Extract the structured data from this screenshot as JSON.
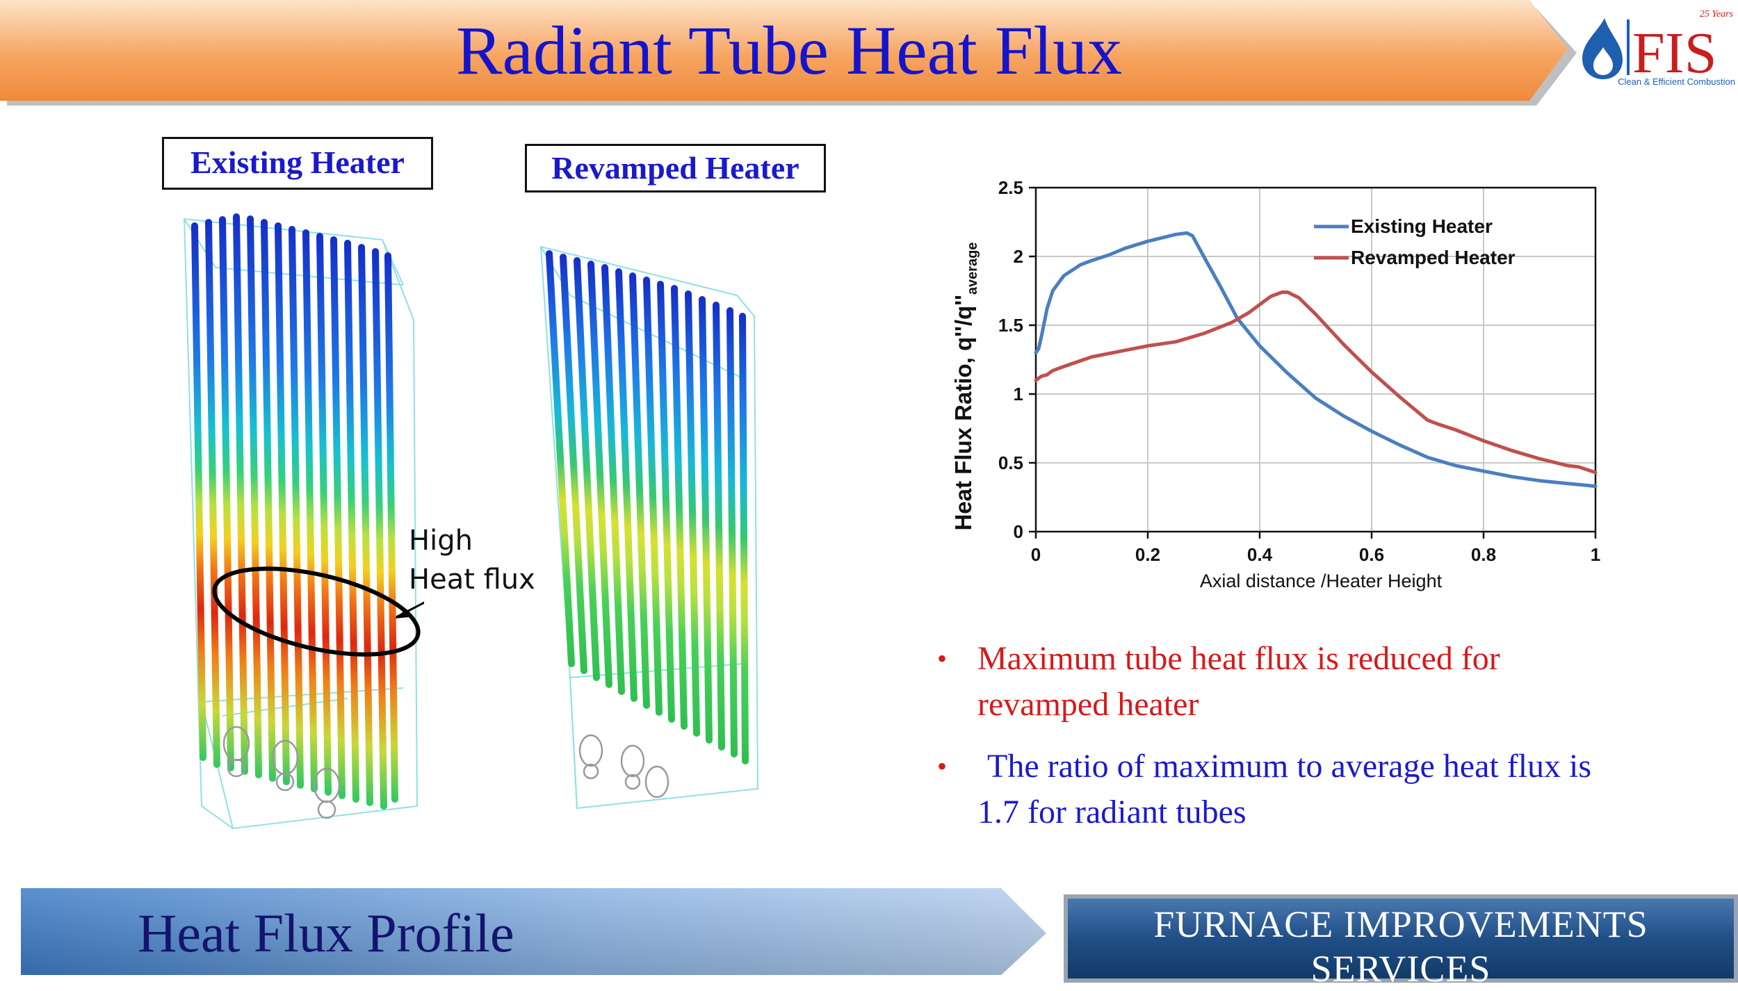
{
  "slide": {
    "title": "Radiant Tube Heat Flux",
    "logo": {
      "text": "FIS",
      "years": "25 Years",
      "tagline": "Clean & Efficient Combustion",
      "icon": "flame-drop-icon"
    },
    "heater_labels": {
      "existing": "Existing Heater",
      "revamped": "Revamped Heater"
    },
    "annotation": {
      "line1": "High",
      "line2": "Heat flux"
    },
    "bullets": [
      {
        "line1": "Maximum tube heat flux is reduced for",
        "line2": "revamped heater",
        "color": "#d61a1a"
      },
      {
        "line1": "The ratio of maximum to average heat flux is",
        "line2": "1.7 for radiant tubes",
        "color": "#1a1acc"
      }
    ],
    "footer_title": "Heat Flux Profile",
    "company_name": "FURNACE IMPROVEMENTS SERVICES",
    "colors": {
      "title_text": "#1414cc",
      "title_banner": "#f5a05a",
      "footer_banner": "#5a8fd0",
      "company_box": "#1f4f86"
    }
  },
  "chart_data": {
    "type": "line",
    "title": "",
    "xlabel": "Axial distance /Heater Height",
    "ylabel_main": "Heat Flux Ratio, q''/q''",
    "ylabel_sub": "average",
    "xlim": [
      0,
      1
    ],
    "ylim": [
      0,
      2.5
    ],
    "x_ticks": [
      "0",
      "0.2",
      "0.4",
      "0.6",
      "0.8",
      "1"
    ],
    "y_ticks": [
      "0",
      "0.5",
      "1",
      "1.5",
      "2",
      "2.5"
    ],
    "x_tick_values": [
      0,
      0.2,
      0.4,
      0.6,
      0.8,
      1
    ],
    "y_tick_values": [
      0,
      0.5,
      1,
      1.5,
      2,
      2.5
    ],
    "grid": true,
    "legend_position": "top-right",
    "series": [
      {
        "name": "Existing Heater",
        "color": "#4a7fbf",
        "x": [
          0,
          0.005,
          0.01,
          0.02,
          0.03,
          0.05,
          0.08,
          0.1,
          0.13,
          0.16,
          0.2,
          0.23,
          0.25,
          0.27,
          0.28,
          0.3,
          0.33,
          0.36,
          0.4,
          0.45,
          0.5,
          0.55,
          0.6,
          0.65,
          0.7,
          0.75,
          0.8,
          0.85,
          0.9,
          0.95,
          1.0
        ],
        "y": [
          1.3,
          1.33,
          1.42,
          1.62,
          1.75,
          1.86,
          1.94,
          1.97,
          2.01,
          2.06,
          2.11,
          2.14,
          2.16,
          2.17,
          2.15,
          2.0,
          1.78,
          1.55,
          1.35,
          1.15,
          0.97,
          0.84,
          0.73,
          0.63,
          0.54,
          0.48,
          0.44,
          0.4,
          0.37,
          0.35,
          0.33
        ]
      },
      {
        "name": "Revamped Heater",
        "color": "#c0504d",
        "x": [
          0,
          0.01,
          0.02,
          0.03,
          0.05,
          0.1,
          0.15,
          0.2,
          0.25,
          0.3,
          0.35,
          0.38,
          0.4,
          0.42,
          0.44,
          0.45,
          0.47,
          0.5,
          0.55,
          0.6,
          0.65,
          0.7,
          0.72,
          0.75,
          0.8,
          0.85,
          0.9,
          0.95,
          0.97,
          1.0
        ],
        "y": [
          1.1,
          1.13,
          1.14,
          1.17,
          1.2,
          1.27,
          1.31,
          1.35,
          1.38,
          1.44,
          1.52,
          1.59,
          1.65,
          1.71,
          1.74,
          1.74,
          1.7,
          1.58,
          1.36,
          1.16,
          0.98,
          0.81,
          0.78,
          0.74,
          0.66,
          0.59,
          0.53,
          0.48,
          0.47,
          0.43
        ]
      }
    ]
  }
}
